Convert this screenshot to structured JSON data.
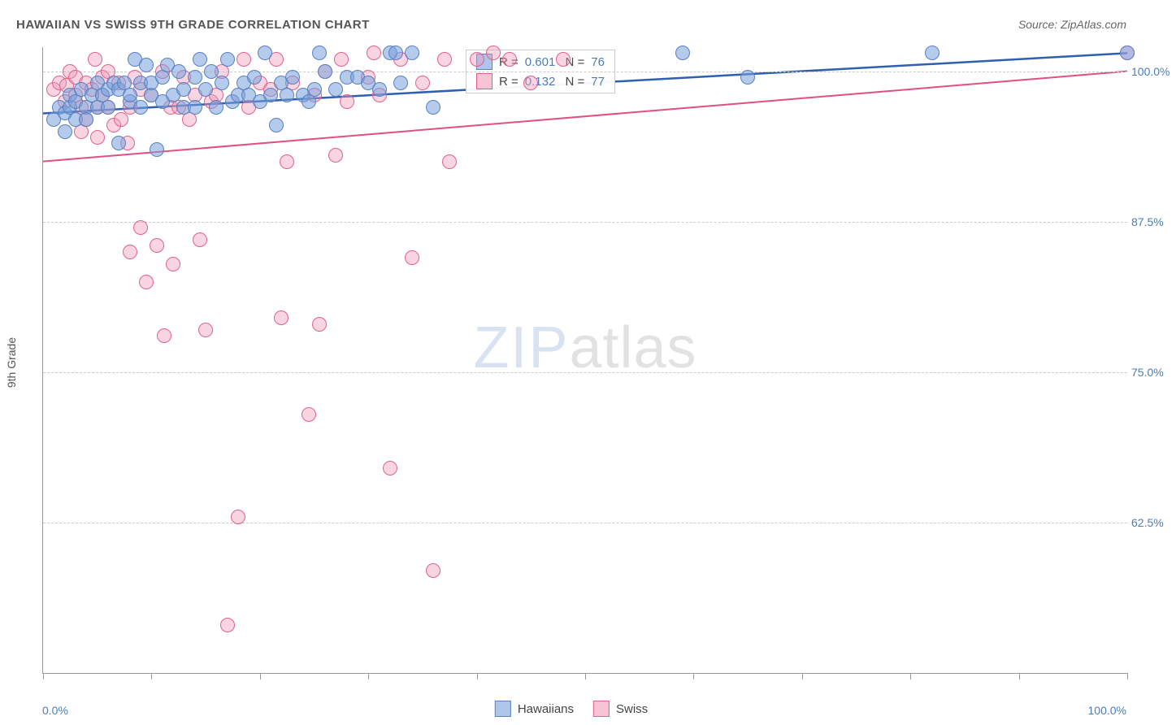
{
  "title": "HAWAIIAN VS SWISS 9TH GRADE CORRELATION CHART",
  "source": "Source: ZipAtlas.com",
  "ylabel": "9th Grade",
  "xaxis": {
    "min_label": "0.0%",
    "max_label": "100.0%",
    "min": 0,
    "max": 100,
    "tick_step": 10
  },
  "yaxis": {
    "min": 50,
    "max": 102,
    "ticks": [
      {
        "v": 62.5,
        "label": "62.5%"
      },
      {
        "v": 75.0,
        "label": "75.0%"
      },
      {
        "v": 87.5,
        "label": "87.5%"
      },
      {
        "v": 100.0,
        "label": "100.0%"
      }
    ]
  },
  "series": {
    "a": {
      "name": "Hawaiians",
      "color_fill": "rgba(120,160,220,0.55)",
      "color_stroke": "#5a80c0",
      "trend_color": "#2e5fb0",
      "trend_width": 2.5,
      "R": "0.601",
      "N": "76",
      "trend": {
        "x1": 0,
        "y1": 96.5,
        "x2": 100,
        "y2": 101.5
      },
      "points": [
        [
          1,
          96
        ],
        [
          1.5,
          97
        ],
        [
          2,
          96.5
        ],
        [
          2,
          95
        ],
        [
          2.5,
          97
        ],
        [
          2.5,
          98
        ],
        [
          3,
          97.5
        ],
        [
          3,
          96
        ],
        [
          3.5,
          98.5
        ],
        [
          4,
          97
        ],
        [
          4,
          96
        ],
        [
          4.5,
          98
        ],
        [
          5,
          97
        ],
        [
          5,
          99
        ],
        [
          5.5,
          98
        ],
        [
          6,
          98.5
        ],
        [
          6,
          97
        ],
        [
          6.5,
          99
        ],
        [
          7,
          94
        ],
        [
          7,
          98.5
        ],
        [
          7.5,
          99
        ],
        [
          8,
          97.5
        ],
        [
          8,
          98
        ],
        [
          8.5,
          101
        ],
        [
          9,
          99
        ],
        [
          9,
          97
        ],
        [
          9.5,
          100.5
        ],
        [
          10,
          98
        ],
        [
          10,
          99
        ],
        [
          10.5,
          93.5
        ],
        [
          11,
          97.5
        ],
        [
          11,
          99.5
        ],
        [
          11.5,
          100.5
        ],
        [
          12,
          98
        ],
        [
          12.5,
          100
        ],
        [
          13,
          97
        ],
        [
          13,
          98.5
        ],
        [
          14,
          99.5
        ],
        [
          14,
          97
        ],
        [
          14.5,
          101
        ],
        [
          15,
          98.5
        ],
        [
          15.5,
          100
        ],
        [
          16,
          97
        ],
        [
          16.5,
          99
        ],
        [
          17,
          101
        ],
        [
          17.5,
          97.5
        ],
        [
          18,
          98
        ],
        [
          18.5,
          99
        ],
        [
          19,
          98
        ],
        [
          19.5,
          99.5
        ],
        [
          20,
          97.5
        ],
        [
          20.5,
          101.5
        ],
        [
          21,
          98
        ],
        [
          21.5,
          95.5
        ],
        [
          22,
          99
        ],
        [
          22.5,
          98
        ],
        [
          23,
          99.5
        ],
        [
          24,
          98
        ],
        [
          24.5,
          97.5
        ],
        [
          25,
          98.5
        ],
        [
          25.5,
          101.5
        ],
        [
          26,
          100
        ],
        [
          27,
          98.5
        ],
        [
          28,
          99.5
        ],
        [
          29,
          99.5
        ],
        [
          30,
          99
        ],
        [
          31,
          98.5
        ],
        [
          32,
          101.5
        ],
        [
          32.5,
          101.5
        ],
        [
          33,
          99
        ],
        [
          34,
          101.5
        ],
        [
          36,
          97
        ],
        [
          59,
          101.5
        ],
        [
          65,
          99.5
        ],
        [
          82,
          101.5
        ],
        [
          100,
          101.5
        ]
      ]
    },
    "b": {
      "name": "Swiss",
      "color_fill": "rgba(240,150,180,0.40)",
      "color_stroke": "#e06090",
      "trend_color": "#e05080",
      "trend_width": 2,
      "R": "0.132",
      "N": "77",
      "trend": {
        "x1": 0,
        "y1": 92.5,
        "x2": 100,
        "y2": 100
      },
      "points": [
        [
          1,
          98.5
        ],
        [
          1.5,
          99
        ],
        [
          2,
          97.5
        ],
        [
          2.2,
          98.8
        ],
        [
          2.5,
          100
        ],
        [
          3,
          98
        ],
        [
          3,
          99.5
        ],
        [
          3.5,
          95
        ],
        [
          3.5,
          97
        ],
        [
          4,
          99
        ],
        [
          4,
          96
        ],
        [
          4.5,
          98.5
        ],
        [
          4.8,
          101
        ],
        [
          5,
          97
        ],
        [
          5,
          94.5
        ],
        [
          5.5,
          98
        ],
        [
          5.5,
          99.5
        ],
        [
          6,
          97
        ],
        [
          6,
          100
        ],
        [
          6.5,
          95.5
        ],
        [
          7,
          99
        ],
        [
          7.2,
          96
        ],
        [
          7.8,
          94
        ],
        [
          8,
          85
        ],
        [
          8,
          97
        ],
        [
          8.5,
          99.5
        ],
        [
          9,
          87
        ],
        [
          9,
          98.5
        ],
        [
          9.5,
          82.5
        ],
        [
          10,
          98
        ],
        [
          10.5,
          85.5
        ],
        [
          11,
          100
        ],
        [
          11.2,
          78
        ],
        [
          11.8,
          97
        ],
        [
          12,
          84
        ],
        [
          12.5,
          97
        ],
        [
          13,
          99.5
        ],
        [
          13.5,
          96
        ],
        [
          14,
          98
        ],
        [
          14.5,
          86
        ],
        [
          15,
          78.5
        ],
        [
          15.5,
          97.5
        ],
        [
          16,
          98
        ],
        [
          16.5,
          100
        ],
        [
          17,
          54
        ],
        [
          18,
          63
        ],
        [
          18.5,
          101
        ],
        [
          19,
          97
        ],
        [
          20,
          99
        ],
        [
          21,
          98.5
        ],
        [
          21.5,
          101
        ],
        [
          22,
          79.5
        ],
        [
          22.5,
          92.5
        ],
        [
          23,
          99
        ],
        [
          24.5,
          71.5
        ],
        [
          25,
          98
        ],
        [
          25.5,
          79
        ],
        [
          26,
          100
        ],
        [
          27,
          93
        ],
        [
          27.5,
          101
        ],
        [
          28,
          97.5
        ],
        [
          30,
          99.5
        ],
        [
          30.5,
          101.5
        ],
        [
          31,
          98
        ],
        [
          32,
          67
        ],
        [
          33,
          101
        ],
        [
          34,
          84.5
        ],
        [
          35,
          99
        ],
        [
          36,
          58.5
        ],
        [
          37,
          101
        ],
        [
          37.5,
          92.5
        ],
        [
          40,
          101
        ],
        [
          41.5,
          101.5
        ],
        [
          43,
          101
        ],
        [
          45,
          99
        ],
        [
          48,
          101
        ],
        [
          100,
          101.5
        ]
      ]
    }
  },
  "legend": {
    "a_swatch_bg": "rgba(120,160,220,0.6)",
    "b_swatch_bg": "rgba(240,150,180,0.55)"
  },
  "watermark": {
    "part1": "ZIP",
    "part2": "atlas"
  },
  "marker_radius": 9,
  "background": "#ffffff",
  "grid_color": "#cccccc"
}
